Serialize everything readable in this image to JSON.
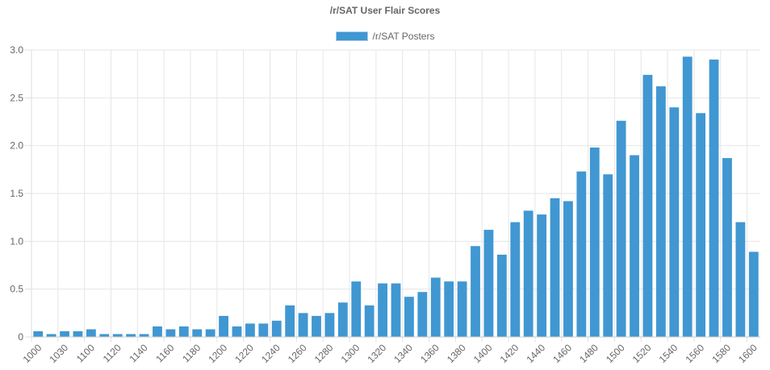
{
  "chart_data": {
    "type": "bar",
    "title": "/r/SAT User Flair Scores",
    "legend": {
      "placement": "top-center"
    },
    "series": [
      {
        "name": "/r/SAT Posters",
        "color": "#4097d2",
        "values": [
          0.06,
          0.03,
          0.06,
          0.06,
          0.08,
          0.03,
          0.03,
          0.03,
          0.03,
          0.11,
          0.08,
          0.11,
          0.08,
          0.08,
          0.22,
          0.11,
          0.14,
          0.14,
          0.17,
          0.33,
          0.25,
          0.22,
          0.25,
          0.36,
          0.58,
          0.33,
          0.56,
          0.56,
          0.42,
          0.47,
          0.62,
          0.58,
          0.58,
          0.95,
          1.12,
          0.86,
          1.2,
          1.32,
          1.28,
          1.45,
          1.42,
          1.73,
          1.98,
          1.7,
          2.26,
          1.9,
          2.74,
          2.62,
          2.4,
          2.93,
          2.34,
          2.9,
          1.87,
          1.2,
          0.89
        ]
      }
    ],
    "x_tick_labels": [
      "1000",
      "1030",
      "1100",
      "1120",
      "1140",
      "1160",
      "1180",
      "1200",
      "1220",
      "1240",
      "1260",
      "1280",
      "1300",
      "1320",
      "1340",
      "1360",
      "1380",
      "1400",
      "1420",
      "1440",
      "1460",
      "1480",
      "1500",
      "1520",
      "1540",
      "1560",
      "1580",
      "1600"
    ],
    "y_ticks": [
      "0",
      "0.5",
      "1.0",
      "1.5",
      "2.0",
      "2.5",
      "3.0"
    ],
    "ylim": [
      0,
      3
    ],
    "grid": true
  }
}
